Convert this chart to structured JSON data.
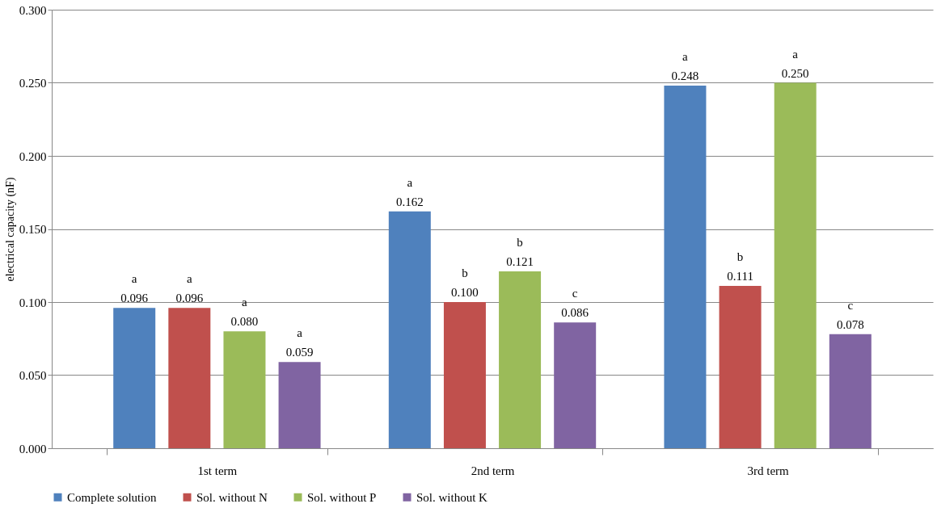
{
  "chart_data": {
    "type": "bar",
    "ylabel": "electrical capacity (nF)",
    "categories": [
      "1st term",
      "2nd term",
      "3rd term"
    ],
    "series": [
      {
        "name": "Complete solution",
        "color": "#4f81bd",
        "values": [
          0.096,
          0.162,
          0.248
        ],
        "value_labels": [
          "a\n0.096",
          "a\n0.162",
          "a\n0.248"
        ]
      },
      {
        "name": "Sol. without N",
        "color": "#c0504d",
        "values": [
          0.096,
          0.1,
          0.111
        ],
        "value_labels": [
          "a\n0.096",
          "b\n0.100",
          "b\n0.111"
        ]
      },
      {
        "name": "Sol. without P",
        "color": "#9bbb59",
        "values": [
          0.08,
          0.121,
          0.25
        ],
        "value_labels": [
          "a\n0.080",
          "b\n0.121",
          "a\n0.250"
        ]
      },
      {
        "name": "Sol. without K",
        "color": "#8064a2",
        "values": [
          0.059,
          0.086,
          0.078
        ],
        "value_labels": [
          "a\n0.059",
          "c\n0.086",
          "c\n0.078"
        ]
      }
    ],
    "ylim": [
      0,
      0.3
    ],
    "yticks": [
      {
        "value": 0,
        "label": "0.000"
      },
      {
        "value": 0.05,
        "label": "0.050"
      },
      {
        "value": 0.1,
        "label": "0.100"
      },
      {
        "value": 0.15,
        "label": "0.150"
      },
      {
        "value": 0.2,
        "label": "0.200"
      },
      {
        "value": 0.25,
        "label": "0.250"
      },
      {
        "value": 0.3,
        "label": "0.300"
      }
    ],
    "grid": "y",
    "legend": "bottom"
  }
}
